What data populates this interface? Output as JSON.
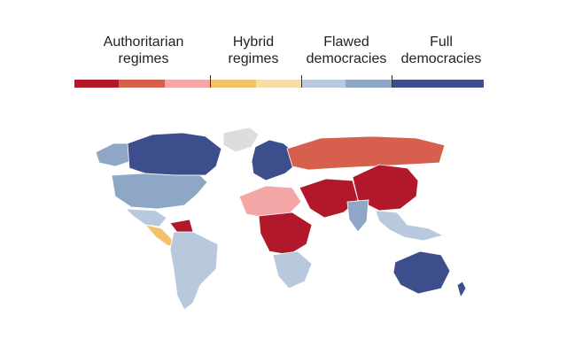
{
  "legend": {
    "categories": [
      {
        "name_line1": "Authoritarian",
        "name_line2": "regimes",
        "shades": [
          "#b2182b",
          "#d6604d",
          "#f4a6a6"
        ]
      },
      {
        "name_line1": "Hybrid",
        "name_line2": "regimes",
        "shades": [
          "#f0c36a",
          "#f6dca6"
        ]
      },
      {
        "name_line1": "Flawed",
        "name_line2": "democracies",
        "shades": [
          "#b8c9de",
          "#8fa7c7"
        ]
      },
      {
        "name_line1": "Full",
        "name_line2": "democracies",
        "shades": [
          "#3c4f8c"
        ]
      }
    ]
  },
  "map_colors": {
    "north_america": "#3c4f8c",
    "usa": "#8fa7c7",
    "mexico": "#b8c9de",
    "greenland": "#dddddd",
    "central_america": "#f0c36a",
    "south_america": "#b8c9de",
    "venezuela": "#b2182b",
    "europe": "#3c4f8c",
    "russia": "#d6604d",
    "china": "#b2182b",
    "middle_east": "#b2182b",
    "africa_north": "#f4a6a6",
    "africa_central": "#b2182b",
    "africa_south": "#b8c9de",
    "india": "#8fa7c7",
    "southeast_asia": "#b8c9de",
    "australia": "#3c4f8c"
  }
}
